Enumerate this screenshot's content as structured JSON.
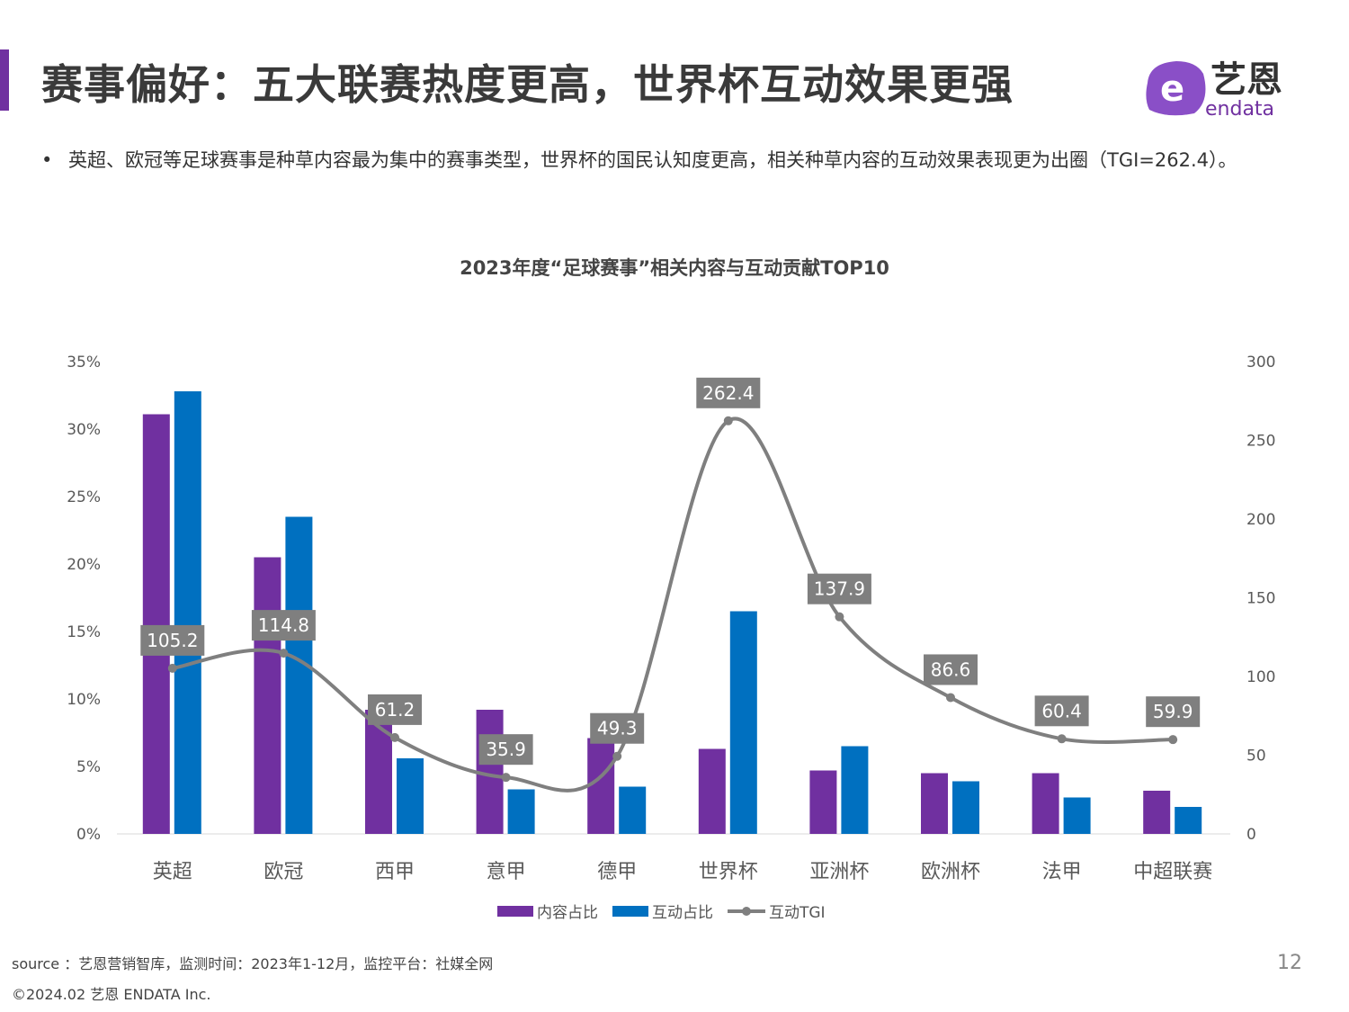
{
  "header": {
    "title": "赛事偏好：五大联赛热度更高，世界杯互动效果更强",
    "logo_text": "艺恩",
    "logo_sub": "endata"
  },
  "bullet": {
    "marker": "•",
    "text": "英超、欧冠等足球赛事是种草内容最为集中的赛事类型，世界杯的国民认知度更高，相关种草内容的互动效果表现更为出圈（TGI=262.4）。"
  },
  "chart_data": {
    "type": "bar",
    "title": "2023年度“足球赛事”相关内容与互动贡献TOP10",
    "categories": [
      "英超",
      "欧冠",
      "西甲",
      "意甲",
      "德甲",
      "世界杯",
      "亚洲杯",
      "欧洲杯",
      "法甲",
      "中超联赛"
    ],
    "series": [
      {
        "name": "内容占比",
        "type": "bar",
        "axis": "left",
        "color": "#7030a0",
        "values": [
          31.1,
          20.5,
          9.2,
          9.2,
          7.1,
          6.3,
          4.7,
          4.5,
          4.5,
          3.2
        ]
      },
      {
        "name": "互动占比",
        "type": "bar",
        "axis": "left",
        "color": "#0070c0",
        "values": [
          32.8,
          23.5,
          5.6,
          3.3,
          3.5,
          16.5,
          6.5,
          3.9,
          2.7,
          2.0
        ]
      },
      {
        "name": "互动TGI",
        "type": "line",
        "axis": "right",
        "color": "#7f7f7f",
        "values": [
          105.2,
          114.8,
          61.2,
          35.9,
          49.3,
          262.4,
          137.9,
          86.6,
          60.4,
          59.9
        ],
        "labels": [
          "105.2",
          "114.8",
          "61.2",
          "35.9",
          "49.3",
          "262.4",
          "137.9",
          "86.6",
          "60.4",
          "59.9"
        ]
      }
    ],
    "y_left": {
      "range": [
        0,
        35
      ],
      "ticks": [
        "0%",
        "5%",
        "10%",
        "15%",
        "20%",
        "25%",
        "30%",
        "35%"
      ]
    },
    "y_right": {
      "range": [
        0,
        300
      ],
      "ticks": [
        "0",
        "50",
        "100",
        "150",
        "200",
        "250",
        "300"
      ]
    },
    "grid": false,
    "legend": "bottom"
  },
  "footer": {
    "source": "source ：艺恩营销智库，监测时间：2023年1-12月，监控平台：社媒全网",
    "copyright": "©2024.02 艺恩 ENDATA Inc.",
    "page": "12"
  }
}
